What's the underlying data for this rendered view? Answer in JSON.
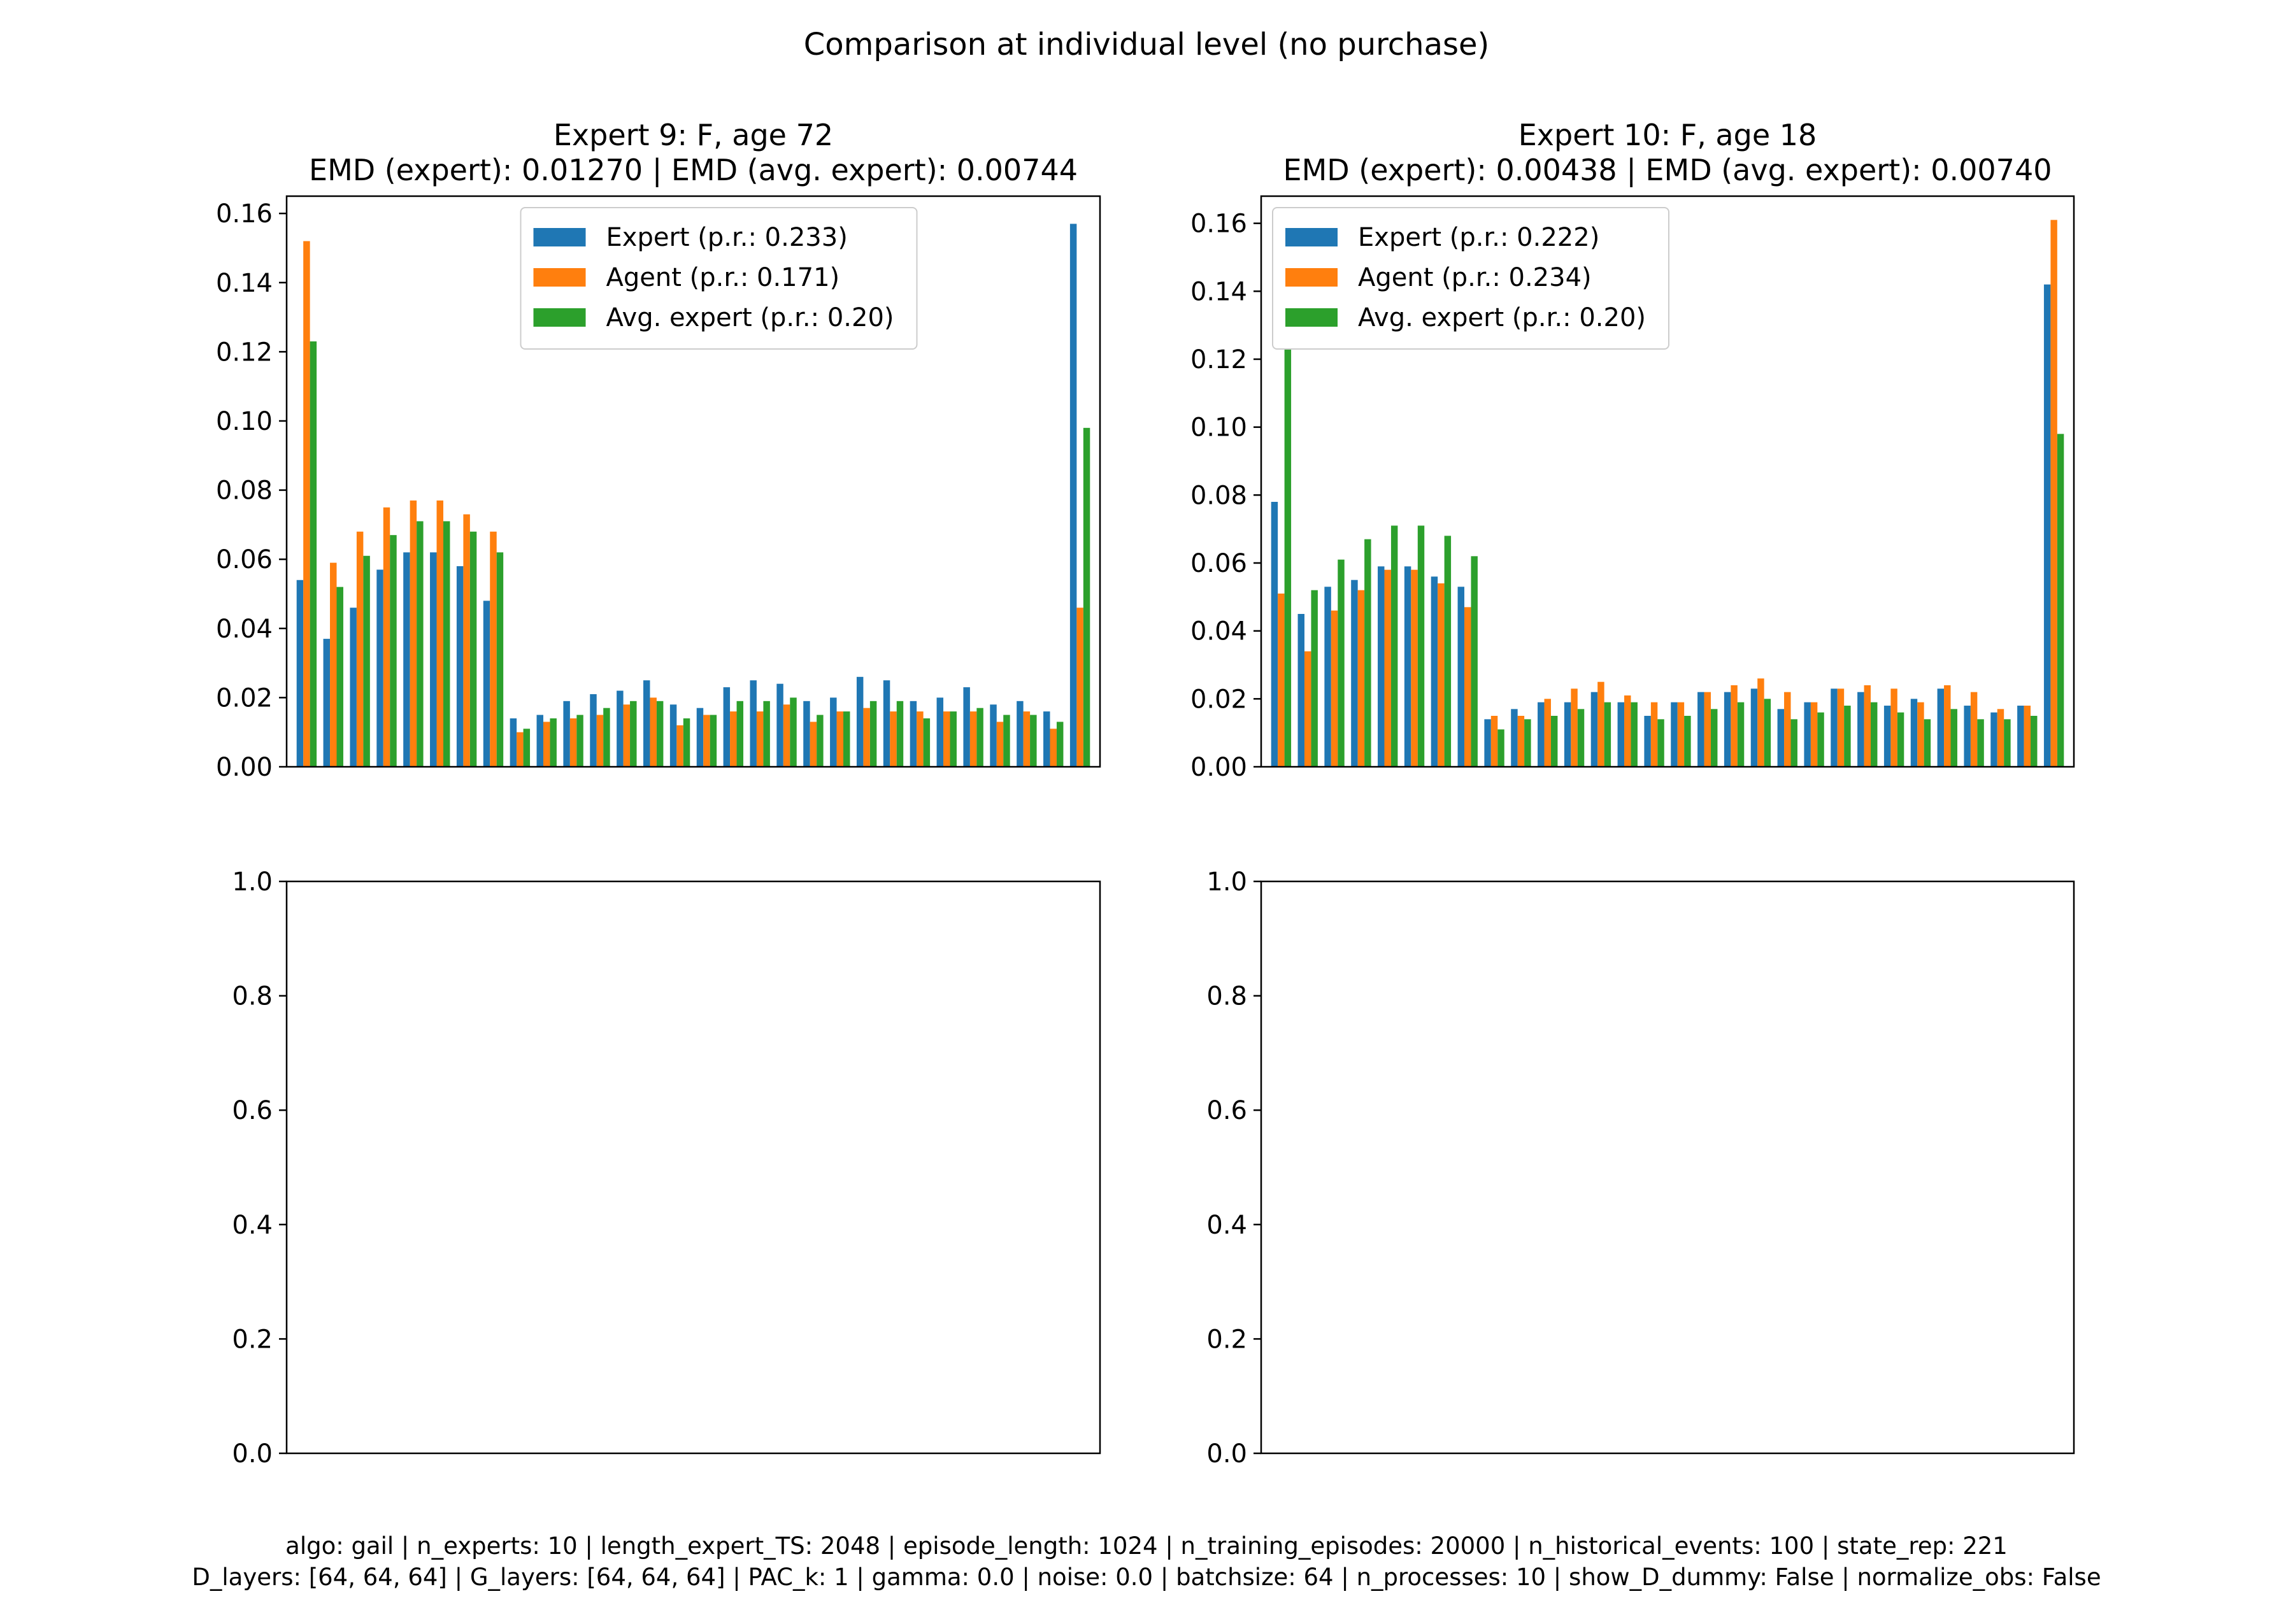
{
  "figure": {
    "suptitle": "Comparison at individual level (no purchase)",
    "footer": [
      "algo: gail | n_experts: 10 | length_expert_TS: 2048 | episode_length: 1024 | n_training_episodes: 20000 | n_historical_events: 100 | state_rep: 221",
      "D_layers: [64, 64, 64] | G_layers: [64, 64, 64] | PAC_k: 1 | gamma: 0.0 | noise: 0.0 | batchsize: 64 | n_processes: 10 | show_D_dummy: False | normalize_obs: False"
    ],
    "colors": {
      "expert": "#1f77b4",
      "agent": "#ff7f0e",
      "avg_expert": "#2ca02c"
    }
  },
  "chart_data": [
    {
      "type": "bar",
      "title": "Expert 9: F, age 72",
      "subtitle": "EMD (expert): 0.01270 | EMD (avg. expert): 0.00744",
      "ylim": [
        0,
        0.165
      ],
      "yticks": [
        "0.00",
        "0.02",
        "0.04",
        "0.06",
        "0.08",
        "0.10",
        "0.12",
        "0.14",
        "0.16"
      ],
      "grid": false,
      "legend_position": "upper-center",
      "series": [
        {
          "name": "Expert (p.r.: 0.233)",
          "color": "#1f77b4",
          "values": [
            0.054,
            0.037,
            0.046,
            0.057,
            0.062,
            0.062,
            0.058,
            0.048,
            0.014,
            0.015,
            0.019,
            0.021,
            0.022,
            0.025,
            0.018,
            0.017,
            0.023,
            0.025,
            0.024,
            0.019,
            0.02,
            0.026,
            0.025,
            0.019,
            0.02,
            0.023,
            0.018,
            0.019,
            0.016,
            0.157
          ]
        },
        {
          "name": "Agent (p.r.: 0.171)",
          "color": "#ff7f0e",
          "values": [
            0.152,
            0.059,
            0.068,
            0.075,
            0.077,
            0.077,
            0.073,
            0.068,
            0.01,
            0.013,
            0.014,
            0.015,
            0.018,
            0.02,
            0.012,
            0.015,
            0.016,
            0.016,
            0.018,
            0.013,
            0.016,
            0.017,
            0.016,
            0.016,
            0.016,
            0.016,
            0.013,
            0.016,
            0.011,
            0.046
          ]
        },
        {
          "name": "Avg. expert (p.r.: 0.20)",
          "color": "#2ca02c",
          "values": [
            0.123,
            0.052,
            0.061,
            0.067,
            0.071,
            0.071,
            0.068,
            0.062,
            0.011,
            0.014,
            0.015,
            0.017,
            0.019,
            0.019,
            0.014,
            0.015,
            0.019,
            0.019,
            0.02,
            0.015,
            0.016,
            0.019,
            0.019,
            0.014,
            0.016,
            0.017,
            0.015,
            0.015,
            0.013,
            0.098
          ]
        }
      ]
    },
    {
      "type": "bar",
      "title": "Expert 10: F, age 18",
      "subtitle": "EMD (expert): 0.00438 | EMD (avg. expert): 0.00740",
      "ylim": [
        0,
        0.168
      ],
      "yticks": [
        "0.00",
        "0.02",
        "0.04",
        "0.06",
        "0.08",
        "0.10",
        "0.12",
        "0.14",
        "0.16"
      ],
      "grid": false,
      "legend_position": "upper-left",
      "series": [
        {
          "name": "Expert (p.r.: 0.222)",
          "color": "#1f77b4",
          "values": [
            0.078,
            0.045,
            0.053,
            0.055,
            0.059,
            0.059,
            0.056,
            0.053,
            0.014,
            0.017,
            0.019,
            0.019,
            0.022,
            0.019,
            0.015,
            0.019,
            0.022,
            0.022,
            0.023,
            0.017,
            0.019,
            0.023,
            0.022,
            0.018,
            0.02,
            0.023,
            0.018,
            0.016,
            0.018,
            0.142
          ]
        },
        {
          "name": "Agent (p.r.: 0.234)",
          "color": "#ff7f0e",
          "values": [
            0.051,
            0.034,
            0.046,
            0.052,
            0.058,
            0.058,
            0.054,
            0.047,
            0.015,
            0.015,
            0.02,
            0.023,
            0.025,
            0.021,
            0.019,
            0.019,
            0.022,
            0.024,
            0.026,
            0.022,
            0.019,
            0.023,
            0.024,
            0.023,
            0.019,
            0.024,
            0.022,
            0.017,
            0.018,
            0.161
          ]
        },
        {
          "name": "Avg. expert (p.r.: 0.20)",
          "color": "#2ca02c",
          "values": [
            0.123,
            0.052,
            0.061,
            0.067,
            0.071,
            0.071,
            0.068,
            0.062,
            0.011,
            0.014,
            0.015,
            0.017,
            0.019,
            0.019,
            0.014,
            0.015,
            0.017,
            0.019,
            0.02,
            0.014,
            0.016,
            0.018,
            0.019,
            0.016,
            0.014,
            0.017,
            0.014,
            0.014,
            0.015,
            0.098
          ]
        }
      ]
    },
    {
      "type": "bar",
      "title": "",
      "ylim": [
        0,
        1
      ],
      "yticks": [
        "0.0",
        "0.2",
        "0.4",
        "0.6",
        "0.8",
        "1.0"
      ],
      "grid": false,
      "series": []
    },
    {
      "type": "bar",
      "title": "",
      "ylim": [
        0,
        1
      ],
      "yticks": [
        "0.0",
        "0.2",
        "0.4",
        "0.6",
        "0.8",
        "1.0"
      ],
      "grid": false,
      "series": []
    }
  ]
}
